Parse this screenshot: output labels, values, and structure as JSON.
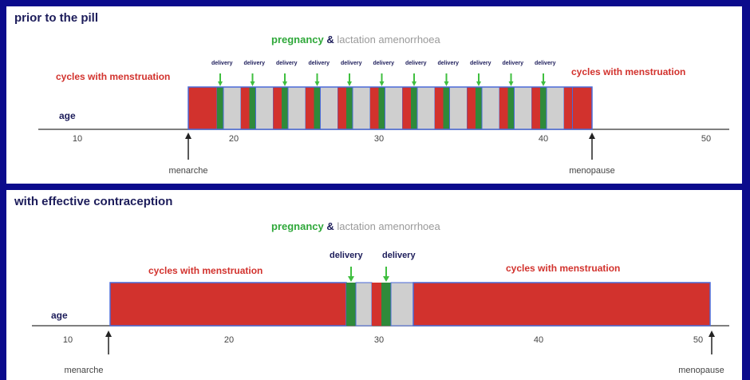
{
  "panel_top": {
    "title": "prior to the pill",
    "legend": {
      "pregnancy": "pregnancy",
      "amp": "&",
      "lactation": "lactation amenorrhoea"
    },
    "cycles_left": "cycles with menstruation",
    "cycles_right": "cycles with menstruation",
    "age_label": "age",
    "ticks": [
      "10",
      "20",
      "30",
      "40",
      "50"
    ],
    "delivery_label": "delivery",
    "delivery_count": 11,
    "menarche": "menarche",
    "menopause": "menopause"
  },
  "panel_bottom": {
    "title": "with effective contraception",
    "legend": {
      "pregnancy": "pregnancy",
      "amp": "&",
      "lactation": "lactation amenorrhoea"
    },
    "cycles_left": "cycles with menstruation",
    "cycles_right": "cycles with menstruation",
    "age_label": "age",
    "ticks": [
      "10",
      "20",
      "30",
      "40",
      "50"
    ],
    "delivery_labels": [
      "delivery",
      "delivery"
    ],
    "menarche": "menarche",
    "menopause": "menopause"
  },
  "colors": {
    "menstruation": "#d2322d",
    "pregnancy": "#2f8a3a",
    "lactation": "#cfcfcf",
    "frame": "#0b0b8c",
    "outline": "#4a6ad8",
    "arrow_green": "#3fbf3f"
  }
}
